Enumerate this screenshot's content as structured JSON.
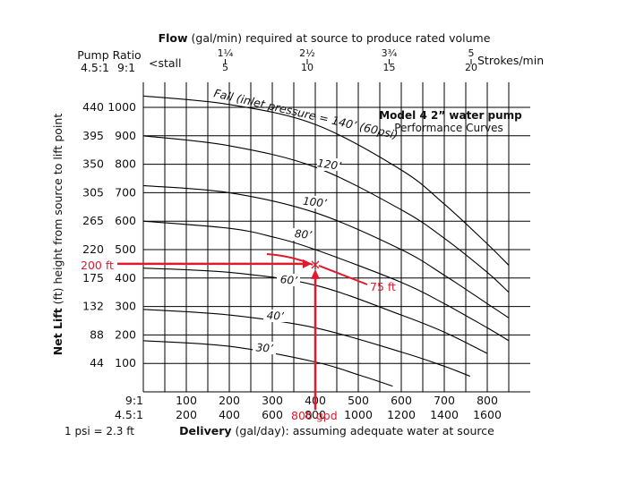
{
  "chart_data": {
    "type": "line",
    "title_bold": "Flow",
    "title_rest": " (gal/min) required at source to produce rated volume",
    "box_title": "Model 4 2” water pump",
    "box_subtitle": "Performance Curves",
    "ylabel_bold": "Net Lift",
    "ylabel_rest": " (ft) height from source to lift point",
    "xlabel_bold": "Delivery",
    "xlabel_rest": " (gal/day): assuming adequate water at source",
    "pump_ratio_label": "Pump Ratio",
    "ratio_col_1": "4.5:1",
    "ratio_col_2": "9:1",
    "stall_label": "<stall",
    "strokes_label": "Strokes/min",
    "conversion_note": "1 psi = 2.3 ft",
    "xlim": [
      0,
      900
    ],
    "ylim": [
      0,
      1000
    ],
    "flow_ticks": [
      {
        "x": 100,
        "top": "1¼",
        "bottom": "5"
      },
      {
        "x": 200,
        "top": "2½",
        "bottom": "10"
      },
      {
        "x": 300,
        "top": "3¾",
        "bottom": "15"
      },
      {
        "x": 400,
        "top": "5",
        "bottom": "20"
      }
    ],
    "left_ticks": [
      {
        "y": 100,
        "ft": "44",
        "ratio9": "100"
      },
      {
        "y": 200,
        "ft": "88",
        "ratio9": "200"
      },
      {
        "y": 300,
        "ft": "132",
        "ratio9": "300"
      },
      {
        "y": 400,
        "ft": "175",
        "ratio9": "400"
      },
      {
        "y": 500,
        "ft": "220",
        "ratio9": "500"
      },
      {
        "y": 600,
        "ft": "265",
        "ratio9": "600"
      },
      {
        "y": 700,
        "ft": "305",
        "ratio9": "700"
      },
      {
        "y": 800,
        "ft": "350",
        "ratio9": "800"
      },
      {
        "y": 900,
        "ft": "395",
        "ratio9": "900"
      },
      {
        "y": 1000,
        "ft": "440",
        "ratio9": "1000"
      }
    ],
    "x_ticks": [
      {
        "x": 100,
        "r9": "100",
        "r45": "200"
      },
      {
        "x": 200,
        "r9": "200",
        "r45": "400"
      },
      {
        "x": 300,
        "r9": "300",
        "r45": "600"
      },
      {
        "x": 400,
        "r9": "400",
        "r45": "800"
      },
      {
        "x": 500,
        "r9": "500",
        "r45": "1000"
      },
      {
        "x": 600,
        "r9": "600",
        "r45": "1200"
      },
      {
        "x": 700,
        "r9": "700",
        "r45": "1400"
      },
      {
        "x": 800,
        "r9": "800",
        "r45": "1600"
      }
    ],
    "x_axis_ratio_9": "9:1",
    "x_axis_ratio_45": "4.5:1",
    "series": [
      {
        "name": "Fall (inlet pressure = 140’ (60psi)",
        "points": [
          [
            0,
            1040
          ],
          [
            200,
            1010
          ],
          [
            400,
            940
          ],
          [
            600,
            780
          ],
          [
            700,
            660
          ],
          [
            800,
            520
          ],
          [
            850,
            445
          ]
        ]
      },
      {
        "name": "120’",
        "points": [
          [
            0,
            900
          ],
          [
            200,
            865
          ],
          [
            400,
            790
          ],
          [
            600,
            640
          ],
          [
            700,
            540
          ],
          [
            800,
            420
          ],
          [
            850,
            350
          ]
        ]
      },
      {
        "name": "100’",
        "points": [
          [
            0,
            725
          ],
          [
            200,
            700
          ],
          [
            400,
            630
          ],
          [
            600,
            500
          ],
          [
            700,
            410
          ],
          [
            800,
            310
          ],
          [
            850,
            260
          ]
        ]
      },
      {
        "name": "80’",
        "points": [
          [
            0,
            600
          ],
          [
            200,
            575
          ],
          [
            300,
            545
          ],
          [
            400,
            500
          ],
          [
            600,
            385
          ],
          [
            700,
            310
          ],
          [
            800,
            225
          ],
          [
            850,
            180
          ]
        ]
      },
      {
        "name": "60’",
        "points": [
          [
            0,
            435
          ],
          [
            200,
            420
          ],
          [
            400,
            375
          ],
          [
            600,
            270
          ],
          [
            700,
            210
          ],
          [
            800,
            135
          ]
        ]
      },
      {
        "name": "40’",
        "points": [
          [
            0,
            290
          ],
          [
            200,
            270
          ],
          [
            400,
            225
          ],
          [
            600,
            140
          ],
          [
            700,
            90
          ],
          [
            760,
            55
          ]
        ]
      },
      {
        "name": "30’",
        "points": [
          [
            0,
            180
          ],
          [
            200,
            160
          ],
          [
            400,
            105
          ],
          [
            500,
            60
          ],
          [
            580,
            20
          ]
        ]
      }
    ],
    "annotations": {
      "lift_label": "200 ft",
      "delivery_label": "800 gpd",
      "fall_label": "75 ft",
      "marker": "×",
      "point": [
        400,
        450
      ]
    }
  }
}
